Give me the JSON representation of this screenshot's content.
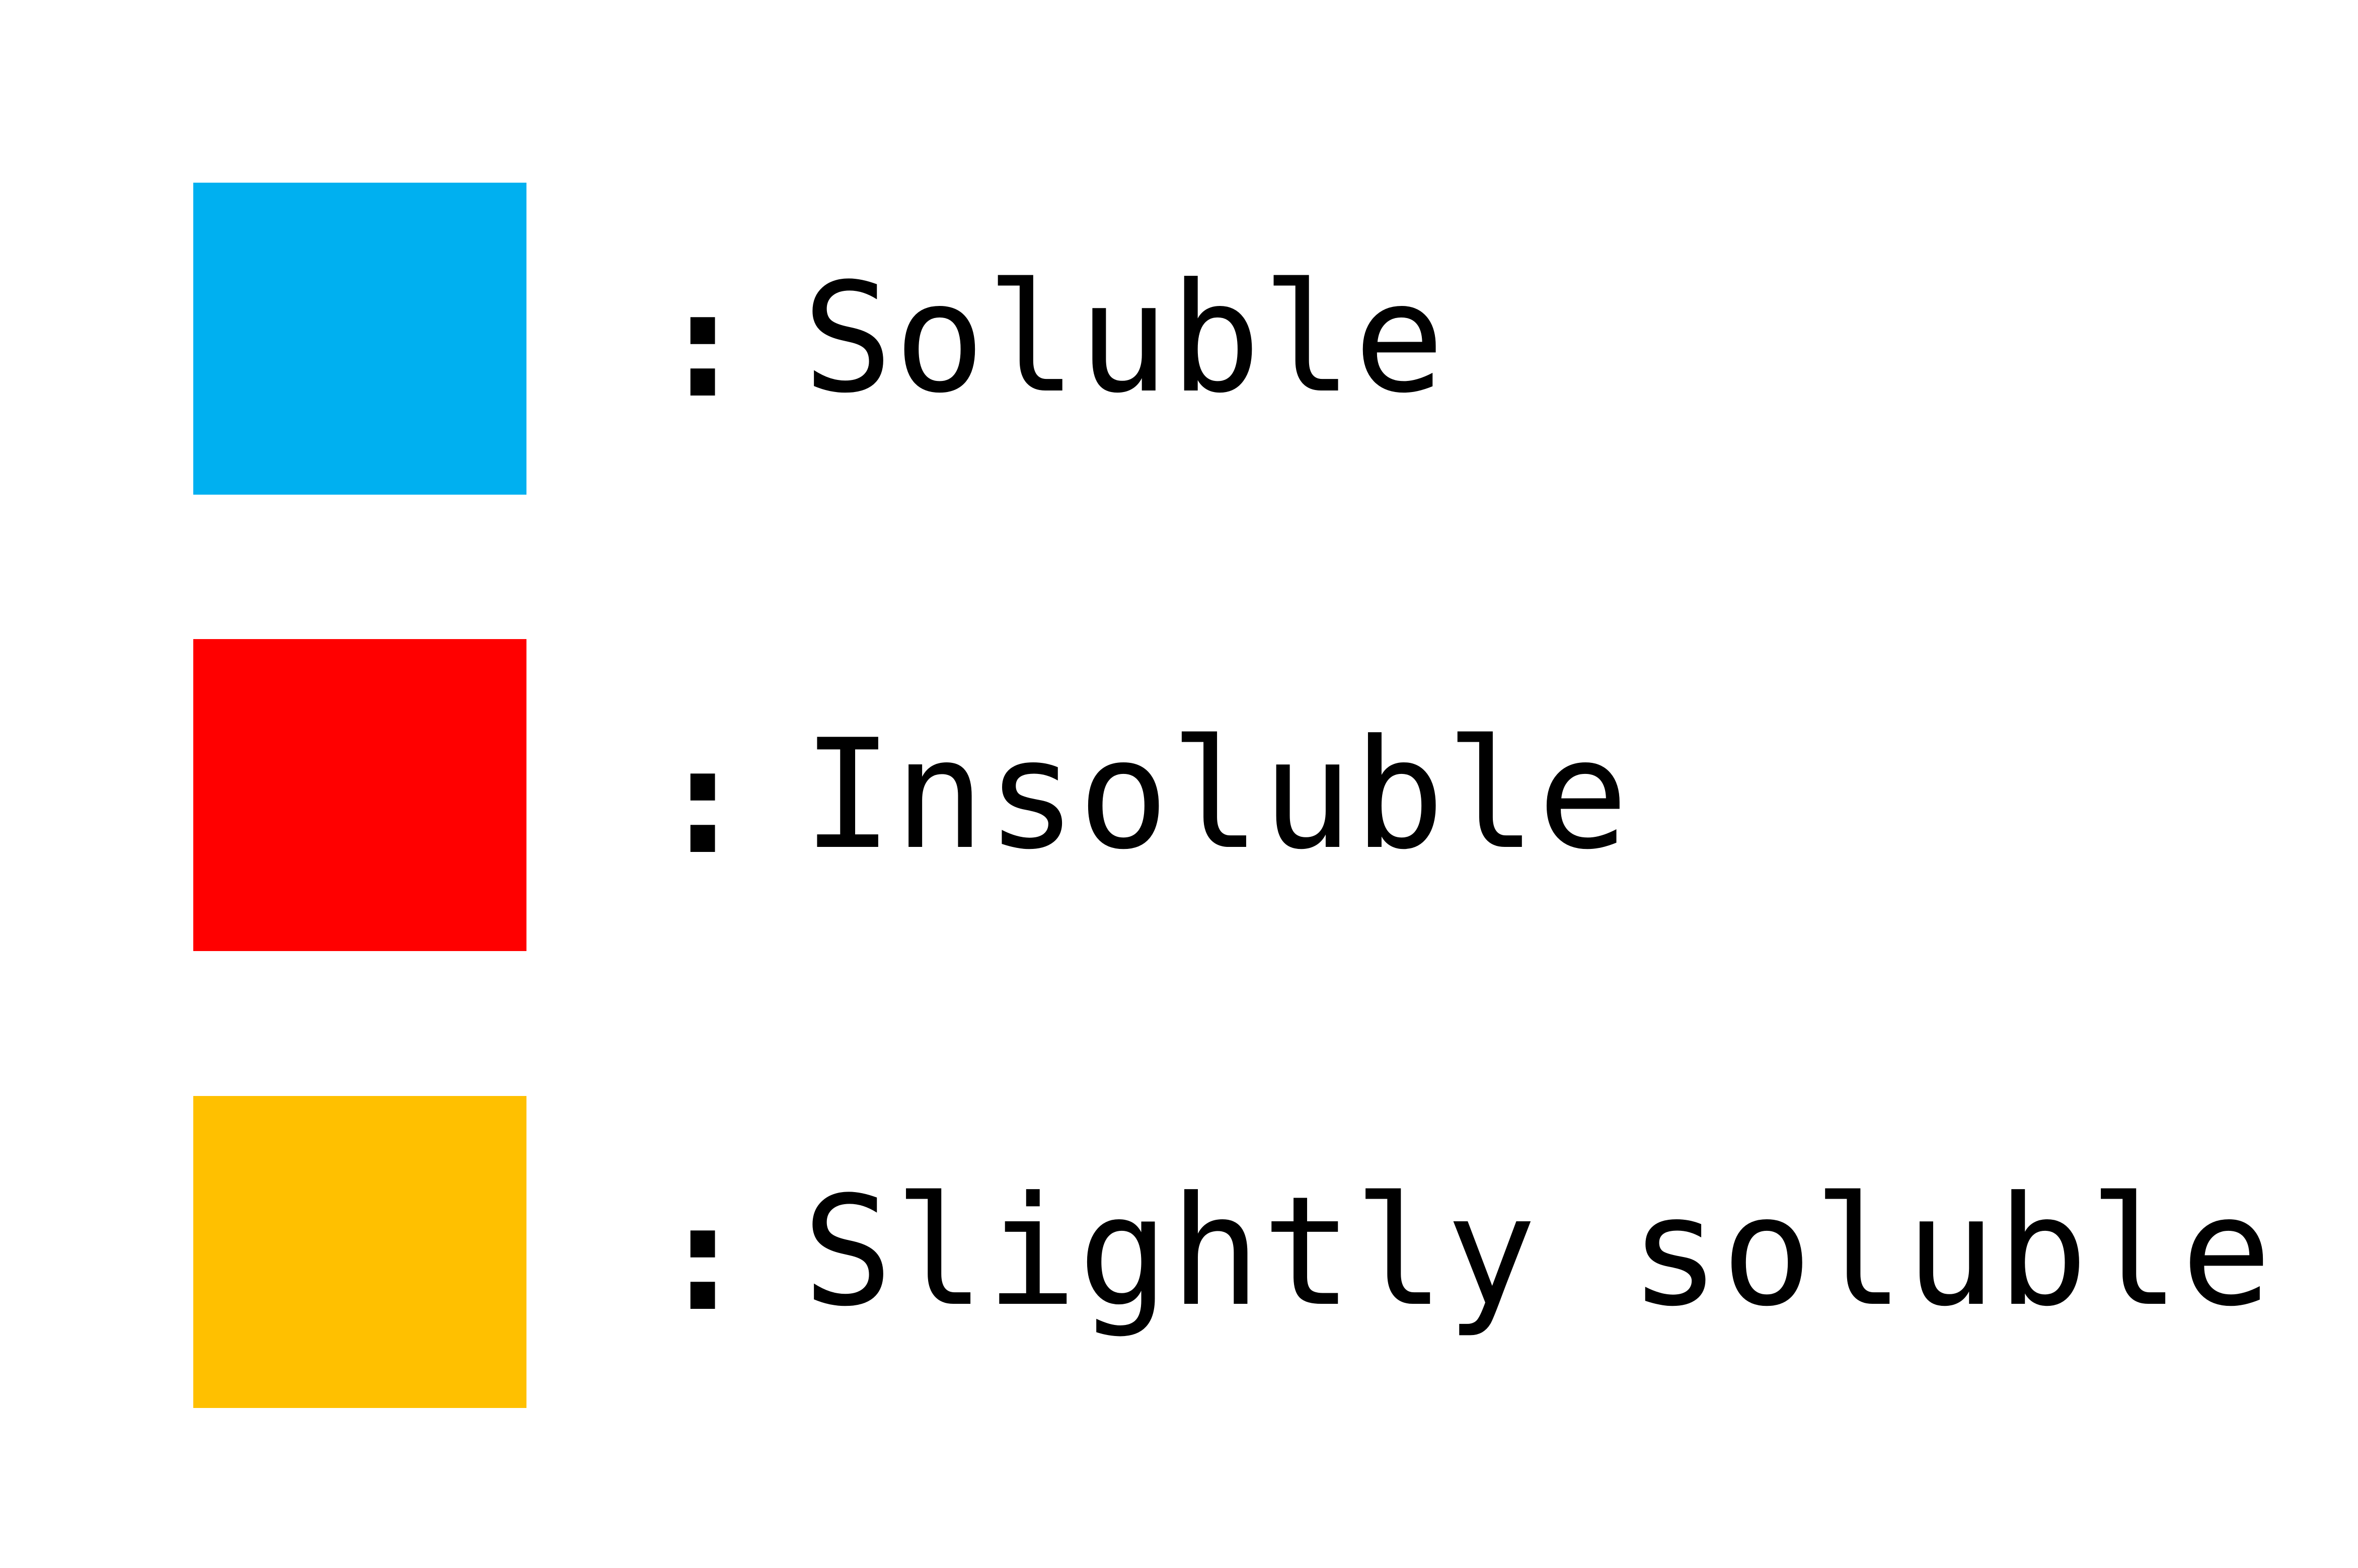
{
  "legend": {
    "separator": ":",
    "items": [
      {
        "label": "Soluble",
        "color": "#00B0F0"
      },
      {
        "label": "Insoluble",
        "color": "#FF0000"
      },
      {
        "label": "Slightly soluble",
        "color": "#FFC000"
      }
    ]
  }
}
